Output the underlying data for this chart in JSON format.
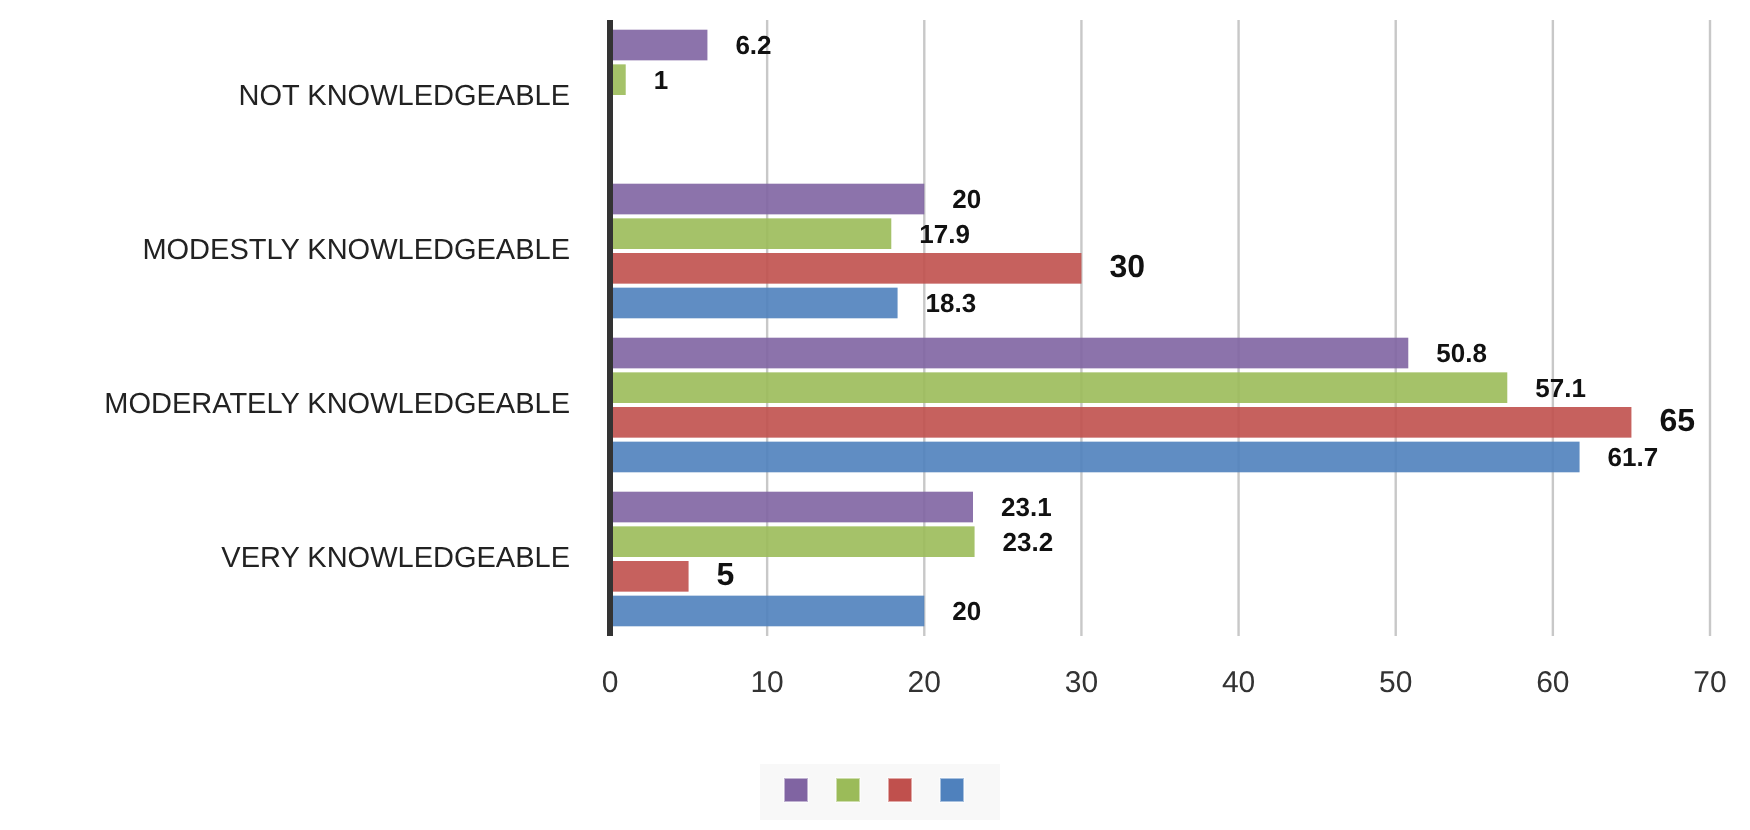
{
  "chart_data": {
    "type": "bar",
    "orientation": "horizontal",
    "categories": [
      "NOT KNOWLEDGEABLE",
      "MODESTLY KNOWLEDGEABLE",
      "MODERATELY KNOWLEDGEABLE",
      "VERY KNOWLEDGEABLE"
    ],
    "series": [
      {
        "color": "#8064a2",
        "values": [
          6.2,
          20,
          50.8,
          23.1
        ]
      },
      {
        "color": "#9bbb59",
        "values": [
          1,
          17.9,
          57.1,
          23.2
        ]
      },
      {
        "color": "#c0504d",
        "values": [
          null,
          30,
          65,
          5
        ]
      },
      {
        "color": "#4f81bd",
        "values": [
          null,
          18.3,
          61.7,
          20
        ]
      }
    ],
    "xlim": [
      0,
      70
    ],
    "xticks": [
      0,
      10,
      20,
      30,
      40,
      50,
      60,
      70
    ],
    "grid": "x",
    "data_labels": true
  }
}
